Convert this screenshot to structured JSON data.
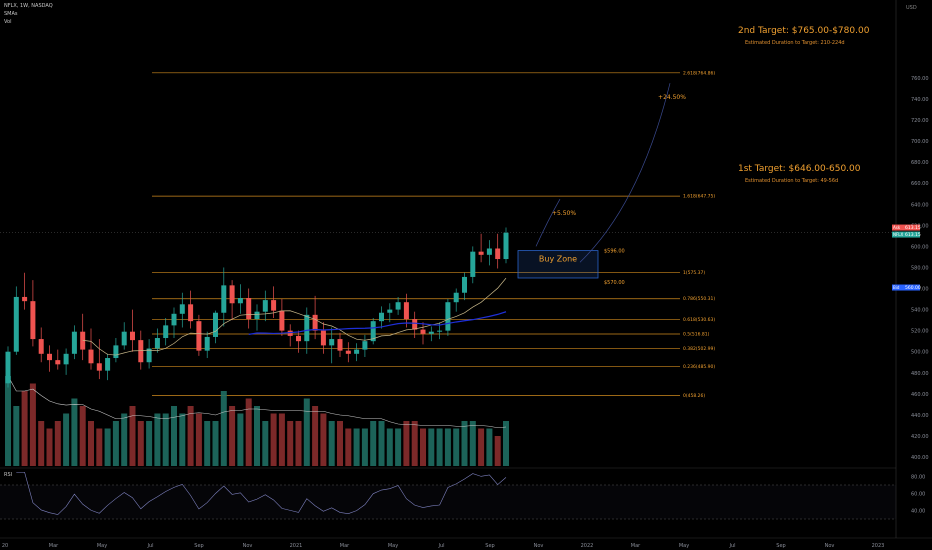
{
  "header": {
    "symbol": "NFLX, 1W, NASDAQ",
    "indicator1": "SMAs",
    "indicator2": "Vol"
  },
  "currency": "USD",
  "colors": {
    "up": "#26a69a",
    "down": "#ef5350",
    "fib": "#d08a1e",
    "annotation": "#f0a030",
    "sma_fast": "#c8b88a",
    "sma_slow": "#1e2fd8",
    "vol_ma": "#c8c8c8",
    "rsi_line": "#7e82c0",
    "buy_zone": "#2a62c8",
    "ask": "#ef5350",
    "last": "#26a69a",
    "bid": "#2962ff"
  },
  "annotations": {
    "target2_title": "2nd Target: $765.00-$780.00",
    "target2_sub": "Estimated Duration to Target: 210-224d",
    "target1_title": "1st Target: $646.00-650.00",
    "target1_sub": "Estimated Duration to Target: 49-56d",
    "pct_large": "+24.50%",
    "pct_small": "+5.50%",
    "buy_zone": "Buy Zone",
    "zone_top": "$596.00",
    "zone_bottom": "$570.00"
  },
  "chart_data": {
    "type": "candlestick",
    "y_ticks": [
      400,
      420,
      440,
      460,
      480,
      500,
      520,
      540,
      560,
      580,
      600,
      620,
      640,
      660,
      680,
      700,
      720,
      740,
      760
    ],
    "x_labels": [
      "20",
      "Mar",
      "May",
      "Jul",
      "Sep",
      "Nov",
      "2021",
      "Mar",
      "May",
      "Jul",
      "Sep",
      "Nov",
      "2022",
      "Mar",
      "May",
      "Jul",
      "Sep",
      "Nov",
      "2023"
    ],
    "fib_levels": [
      {
        "label": "2.618(764.86)",
        "value": 764.86
      },
      {
        "label": "1.618(647.75)",
        "value": 647.75
      },
      {
        "label": "1(575.37)",
        "value": 575.37
      },
      {
        "label": "0.786(550.31)",
        "value": 550.31
      },
      {
        "label": "0.618(530.63)",
        "value": 530.63
      },
      {
        "label": "0.5(516.81)",
        "value": 516.81
      },
      {
        "label": "0.382(502.99)",
        "value": 502.99
      },
      {
        "label": "0.236(485.90)",
        "value": 485.9
      },
      {
        "label": "0(458.26)",
        "value": 458.26
      }
    ],
    "buy_zone": {
      "low": 570,
      "high": 596
    },
    "price_tags": [
      {
        "tag": "Ask",
        "value": "613.15",
        "price": 613.15
      },
      {
        "tag": "NFLX",
        "value": "613.15",
        "price": 613.15
      },
      {
        "tag": "Bid",
        "value": "560.00",
        "price": 560.0
      }
    ],
    "candles": [
      [
        470,
        505,
        466,
        500
      ],
      [
        500,
        562,
        497,
        552
      ],
      [
        552,
        575,
        540,
        548
      ],
      [
        548,
        568,
        505,
        512
      ],
      [
        512,
        523,
        490,
        498
      ],
      [
        498,
        506,
        481,
        492
      ],
      [
        492,
        502,
        483,
        488
      ],
      [
        488,
        503,
        478,
        498
      ],
      [
        498,
        525,
        493,
        519
      ],
      [
        519,
        536,
        492,
        502
      ],
      [
        502,
        522,
        483,
        489
      ],
      [
        489,
        512,
        474,
        482
      ],
      [
        482,
        498,
        473,
        494
      ],
      [
        494,
        513,
        490,
        506
      ],
      [
        506,
        528,
        502,
        519
      ],
      [
        519,
        540,
        500,
        511
      ],
      [
        511,
        520,
        483,
        490
      ],
      [
        490,
        512,
        484,
        503
      ],
      [
        503,
        522,
        499,
        513
      ],
      [
        513,
        532,
        506,
        525
      ],
      [
        525,
        542,
        513,
        536
      ],
      [
        536,
        556,
        523,
        545
      ],
      [
        545,
        558,
        522,
        529
      ],
      [
        529,
        535,
        496,
        501
      ],
      [
        501,
        519,
        494,
        514
      ],
      [
        514,
        539,
        508,
        537
      ],
      [
        537,
        580,
        524,
        563
      ],
      [
        563,
        568,
        530,
        546
      ],
      [
        546,
        564,
        536,
        551
      ],
      [
        551,
        560,
        522,
        531
      ],
      [
        531,
        545,
        520,
        538
      ],
      [
        538,
        558,
        529,
        549
      ],
      [
        549,
        562,
        532,
        539
      ],
      [
        539,
        550,
        515,
        520
      ],
      [
        520,
        526,
        505,
        515
      ],
      [
        515,
        520,
        499,
        510
      ],
      [
        510,
        542,
        498,
        535
      ],
      [
        535,
        553,
        512,
        520
      ],
      [
        520,
        528,
        498,
        506
      ],
      [
        506,
        523,
        489,
        512
      ],
      [
        512,
        518,
        495,
        501
      ],
      [
        501,
        509,
        490,
        498
      ],
      [
        498,
        508,
        491,
        502
      ],
      [
        502,
        516,
        495,
        510
      ],
      [
        510,
        532,
        507,
        529
      ],
      [
        529,
        543,
        522,
        537
      ],
      [
        537,
        546,
        528,
        540
      ],
      [
        540,
        552,
        535,
        547
      ],
      [
        547,
        555,
        523,
        531
      ],
      [
        531,
        538,
        513,
        521
      ],
      [
        521,
        528,
        507,
        517
      ],
      [
        517,
        524,
        510,
        519
      ],
      [
        519,
        528,
        512,
        520
      ],
      [
        520,
        550,
        515,
        547
      ],
      [
        547,
        560,
        538,
        556
      ],
      [
        556,
        575,
        549,
        571
      ],
      [
        571,
        600,
        565,
        595
      ],
      [
        595,
        612,
        585,
        592
      ],
      [
        592,
        606,
        582,
        598
      ],
      [
        598,
        612,
        579,
        588
      ],
      [
        588,
        618,
        584,
        613
      ]
    ],
    "volumes": [
      12,
      8,
      10,
      11,
      6,
      5,
      6,
      7,
      9,
      8,
      6,
      5,
      5,
      6,
      7,
      8,
      6,
      6,
      7,
      7,
      8,
      7,
      8,
      7,
      6,
      6,
      10,
      8,
      7,
      9,
      8,
      6,
      7,
      7,
      6,
      6,
      9,
      8,
      7,
      6,
      6,
      5,
      5,
      5,
      6,
      6,
      5,
      5,
      6,
      6,
      5,
      5,
      5,
      5,
      5,
      6,
      6,
      5,
      5,
      4,
      6
    ],
    "rsi": {
      "levels": [
        70,
        30
      ],
      "ticks": [
        40,
        60,
        80
      ]
    }
  }
}
